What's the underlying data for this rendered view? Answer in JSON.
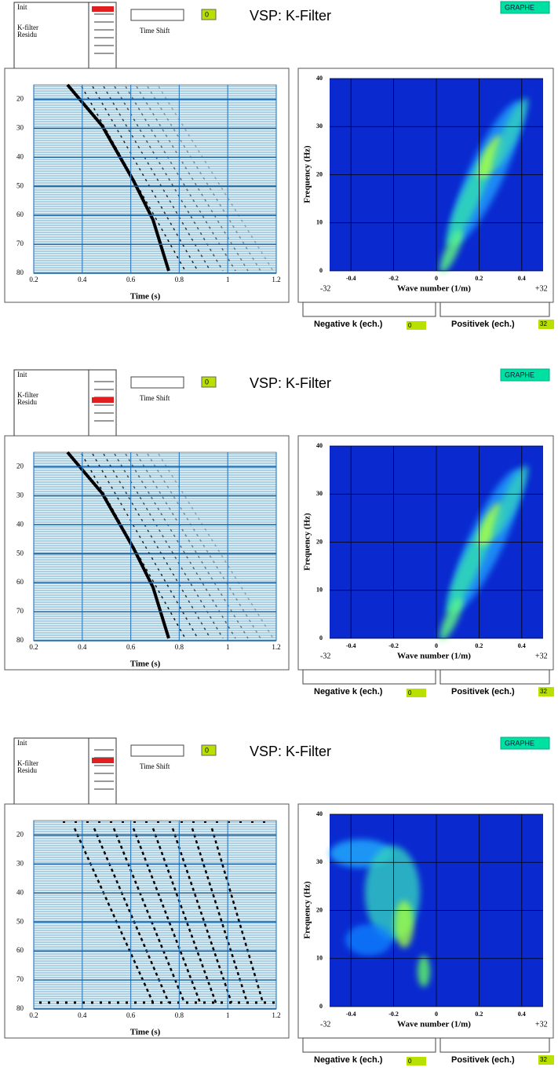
{
  "panels": [
    {
      "menu": {
        "items": [
          "Init",
          "K-filter",
          "Residu"
        ],
        "selected_row": 0
      },
      "time_shift_label": "Time Shift",
      "time_shift_value": 0,
      "title": "VSP: K-Filter",
      "button": "GRAPHE",
      "seismic": {
        "xlabel": "Time (s)",
        "xlim": [
          0.2,
          1.2
        ],
        "ylim": [
          80,
          15
        ],
        "xticks": [
          0.2,
          0.4,
          0.6,
          0.8,
          1,
          1.2
        ],
        "yticks": [
          20,
          30,
          40,
          50,
          60,
          70,
          80
        ]
      },
      "spectrum": {
        "xlabel": "Wave number (1/m)",
        "ylabel": "Frequency (Hz)",
        "xlim": [
          -0.5,
          0.5
        ],
        "ylim": [
          0,
          40
        ],
        "xticks": [
          -0.4,
          -0.2,
          0,
          0.2,
          0.4
        ],
        "yticks": [
          0,
          10,
          20,
          30,
          40
        ],
        "k_ends": [
          "-32",
          "+32"
        ]
      },
      "negative_label": "Negative k (ech.)",
      "negative_value": 0,
      "positive_label": "Positivek (ech.)",
      "positive_value": 32
    },
    {
      "menu": {
        "items": [
          "Init",
          "K-filter",
          "Residu"
        ],
        "selected_row": 3
      },
      "time_shift_label": "Time Shift",
      "time_shift_value": 0,
      "title": "VSP: K-Filter",
      "button": "GRAPHE",
      "seismic": {
        "xlabel": "Time (s)",
        "xlim": [
          0.2,
          1.2
        ],
        "ylim": [
          80,
          15
        ],
        "xticks": [
          0.2,
          0.4,
          0.6,
          0.8,
          1,
          1.2
        ],
        "yticks": [
          20,
          30,
          40,
          50,
          60,
          70,
          80
        ]
      },
      "spectrum": {
        "xlabel": "Wave number (1/m)",
        "ylabel": "Frequency (Hz)",
        "xlim": [
          -0.5,
          0.5
        ],
        "ylim": [
          0,
          40
        ],
        "xticks": [
          -0.4,
          -0.2,
          0,
          0.2,
          0.4
        ],
        "yticks": [
          0,
          10,
          20,
          30,
          40
        ],
        "k_ends": [
          "-32",
          "+32"
        ]
      },
      "negative_label": "Negative k (ech.)",
      "negative_value": 0,
      "positive_label": "Positivek (ech.)",
      "positive_value": 32
    },
    {
      "menu": {
        "items": [
          "Init",
          "K-filter",
          "Residu"
        ],
        "selected_row": 2
      },
      "time_shift_label": "Time Shift",
      "time_shift_value": 0,
      "title": "VSP: K-Filter",
      "button": "GRAPHE",
      "seismic": {
        "xlabel": "Time (s)",
        "xlim": [
          0.2,
          1.2
        ],
        "ylim": [
          80,
          15
        ],
        "xticks": [
          0.2,
          0.4,
          0.6,
          0.8,
          1,
          1.2
        ],
        "yticks": [
          20,
          30,
          40,
          50,
          60,
          70,
          80
        ]
      },
      "spectrum": {
        "xlabel": "Wave number (1/m)",
        "ylabel": "Frequency (Hz)",
        "xlim": [
          -0.5,
          0.5
        ],
        "ylim": [
          0,
          40
        ],
        "xticks": [
          -0.4,
          -0.2,
          0,
          0.2,
          0.4
        ],
        "yticks": [
          0,
          10,
          20,
          30,
          40
        ],
        "k_ends": [
          "-32",
          "+32"
        ]
      },
      "negative_label": "Negative k (ech.)",
      "negative_value": 0,
      "positive_label": "Positivek (ech.)",
      "positive_value": 32
    }
  ]
}
